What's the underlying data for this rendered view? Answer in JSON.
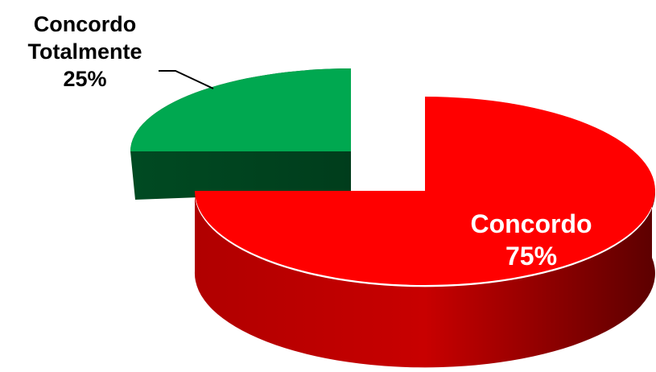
{
  "chart_data": {
    "type": "pie",
    "three_d": true,
    "exploded": true,
    "slices": [
      {
        "label_lines": [
          "Concordo",
          "Totalmente"
        ],
        "value": 25,
        "percent_text": "25%",
        "color": "#00a850"
      },
      {
        "label_lines": [
          "Concordo"
        ],
        "value": 75,
        "percent_text": "75%",
        "color": "#ff0000"
      }
    ],
    "legend": "none"
  }
}
